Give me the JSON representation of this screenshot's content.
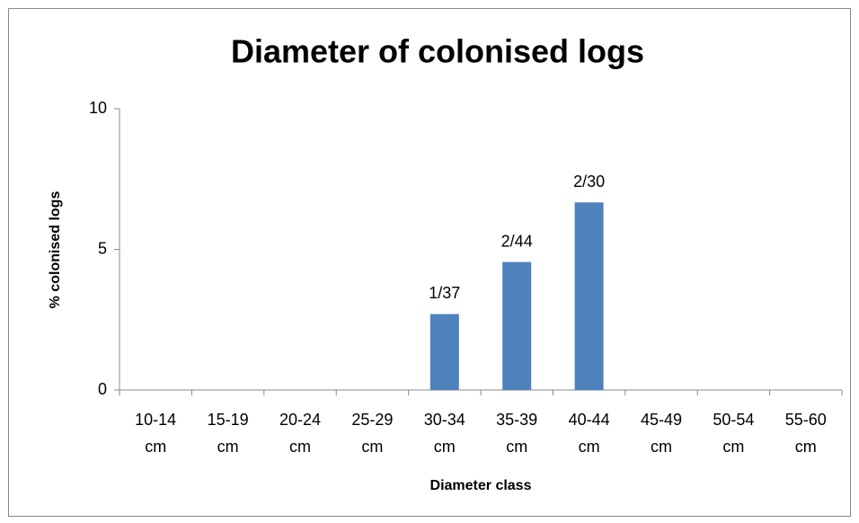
{
  "chart_data": {
    "type": "bar",
    "title": "Diameter of colonised logs",
    "categories": [
      "10-14 cm",
      "15-19 cm",
      "20-24 cm",
      "25-29 cm",
      "30-34 cm",
      "35-39 cm",
      "40-44 cm",
      "45-49 cm",
      "50-54 cm",
      "55-60 cm"
    ],
    "values": [
      0,
      0,
      0,
      0,
      2.7,
      4.55,
      6.67,
      0,
      0,
      0
    ],
    "value_labels": [
      null,
      null,
      null,
      null,
      "1/37",
      "2/44",
      "2/30",
      null,
      null,
      null
    ],
    "color": "#4f81bd",
    "ylim": [
      0,
      10
    ],
    "yticks": [
      0,
      5,
      10
    ],
    "xlabel": "Diameter class",
    "ylabel": "% colonised logs",
    "grid": false
  }
}
